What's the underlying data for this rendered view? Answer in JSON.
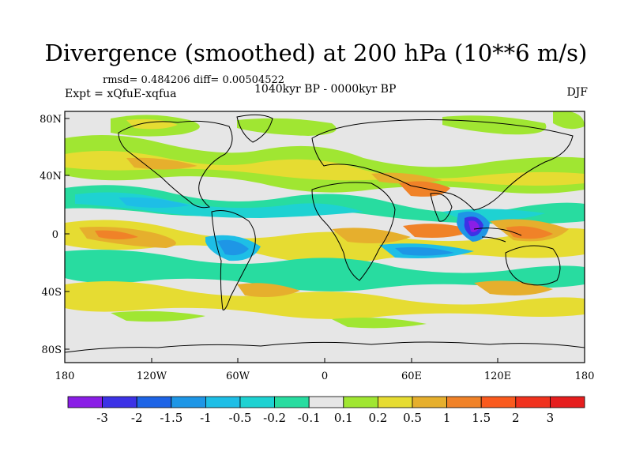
{
  "title": "Divergence (smoothed) at 200 hPa (10**6 m/s)",
  "stats": "rmsd= 0.484206 diff= 0.00504522",
  "experiment": "Expt = xQfuE-xqfua",
  "period": "1040kyr BP - 0000kyr BP",
  "season": "DJF",
  "latitude_labels": [
    "80N",
    "40N",
    "0",
    "40S",
    "80S"
  ],
  "longitude_labels": [
    "180",
    "120W",
    "60W",
    "0",
    "60E",
    "120E",
    "180"
  ],
  "colorbar": {
    "labels": [
      "-3",
      "-2",
      "-1.5",
      "-1",
      "-0.5",
      "-0.2",
      "-0.1",
      "0.1",
      "0.2",
      "0.5",
      "1",
      "1.5",
      "2",
      "3"
    ],
    "colors": [
      "#8a1ee6",
      "#3c32e6",
      "#1e64e6",
      "#1e96e6",
      "#1ebee6",
      "#1ed2d2",
      "#28dca0",
      "#e6e6e6",
      "#a0e632",
      "#e6dc32",
      "#e6af2d",
      "#f08228",
      "#fa5a1e",
      "#f0321e",
      "#e61e1e"
    ]
  },
  "map_colors": {
    "background": "#e6e6e6",
    "coast": "#000000"
  }
}
